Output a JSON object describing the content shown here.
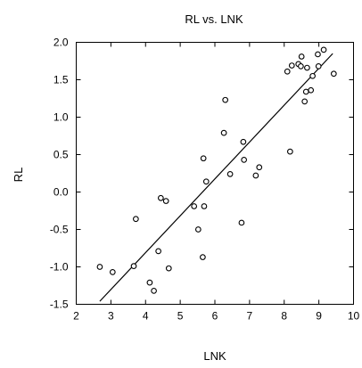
{
  "chart_data": {
    "type": "scatter",
    "title": "RL vs. LNK",
    "xlabel": "LNK",
    "ylabel": "RL",
    "xlim": [
      2,
      10
    ],
    "ylim": [
      -1.5,
      2.0
    ],
    "x_ticks": [
      2,
      3,
      4,
      5,
      6,
      7,
      8,
      9,
      10
    ],
    "y_ticks": [
      -1.5,
      -1.0,
      -0.5,
      0.0,
      0.5,
      1.0,
      1.5,
      2.0
    ],
    "x_tick_labels": [
      "2",
      "3",
      "4",
      "5",
      "6",
      "7",
      "8",
      "9",
      "10"
    ],
    "y_tick_labels": [
      "-1.5",
      "-1.0",
      "-0.5",
      "0.0",
      "0.5",
      "1.0",
      "1.5",
      "2.0"
    ],
    "grid": false,
    "marker": "open-circle",
    "points": [
      {
        "x": 2.68,
        "y": -1.0
      },
      {
        "x": 3.05,
        "y": -1.07
      },
      {
        "x": 3.66,
        "y": -0.99
      },
      {
        "x": 3.72,
        "y": -0.36
      },
      {
        "x": 4.12,
        "y": -1.21
      },
      {
        "x": 4.24,
        "y": -1.32
      },
      {
        "x": 4.37,
        "y": -0.79
      },
      {
        "x": 4.44,
        "y": -0.08
      },
      {
        "x": 4.59,
        "y": -0.12
      },
      {
        "x": 4.67,
        "y": -1.02
      },
      {
        "x": 5.4,
        "y": -0.19
      },
      {
        "x": 5.52,
        "y": -0.5
      },
      {
        "x": 5.65,
        "y": -0.87
      },
      {
        "x": 5.67,
        "y": 0.45
      },
      {
        "x": 5.69,
        "y": -0.19
      },
      {
        "x": 5.75,
        "y": 0.14
      },
      {
        "x": 6.26,
        "y": 0.79
      },
      {
        "x": 6.3,
        "y": 1.23
      },
      {
        "x": 6.44,
        "y": 0.24
      },
      {
        "x": 6.77,
        "y": -0.41
      },
      {
        "x": 6.82,
        "y": 0.67
      },
      {
        "x": 6.84,
        "y": 0.43
      },
      {
        "x": 7.18,
        "y": 0.22
      },
      {
        "x": 7.28,
        "y": 0.33
      },
      {
        "x": 8.09,
        "y": 1.61
      },
      {
        "x": 8.17,
        "y": 0.54
      },
      {
        "x": 8.22,
        "y": 1.69
      },
      {
        "x": 8.41,
        "y": 1.71
      },
      {
        "x": 8.48,
        "y": 1.68
      },
      {
        "x": 8.5,
        "y": 1.81
      },
      {
        "x": 8.59,
        "y": 1.21
      },
      {
        "x": 8.63,
        "y": 1.34
      },
      {
        "x": 8.66,
        "y": 1.66
      },
      {
        "x": 8.77,
        "y": 1.36
      },
      {
        "x": 8.82,
        "y": 1.55
      },
      {
        "x": 8.97,
        "y": 1.84
      },
      {
        "x": 8.99,
        "y": 1.68
      },
      {
        "x": 9.14,
        "y": 1.9
      },
      {
        "x": 9.43,
        "y": 1.58
      }
    ],
    "fit_line": [
      {
        "x": 2.68,
        "y": -1.46
      },
      {
        "x": 9.4,
        "y": 1.85
      }
    ]
  }
}
